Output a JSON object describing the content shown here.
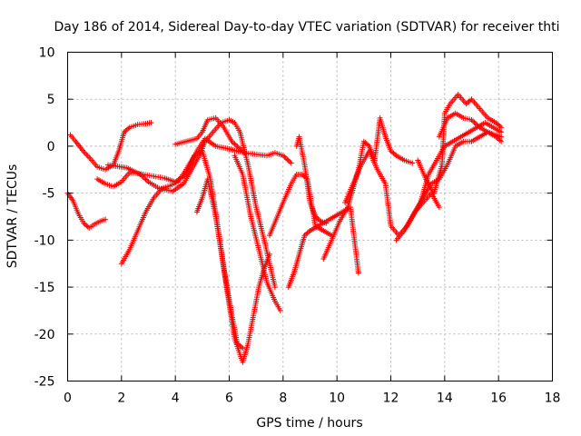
{
  "chart_data": {
    "type": "scatter",
    "title": "Day 186 of 2014, Sidereal Day-to-day VTEC variation (SDTVAR) for receiver thti",
    "xlabel": "GPS time / hours",
    "ylabel": "SDTVAR / TECUs",
    "xlim": [
      0,
      18
    ],
    "ylim": [
      -25,
      10
    ],
    "xticks": [
      "0",
      "2",
      "4",
      "6",
      "8",
      "10",
      "12",
      "14",
      "16",
      "18"
    ],
    "yticks": [
      "10",
      "5",
      "0",
      "-5",
      "-10",
      "-15",
      "-20",
      "-25"
    ],
    "grid": true,
    "marker": "plus",
    "color": "#ff0000",
    "series": [
      {
        "x": [
          0.0,
          0.2,
          0.4,
          0.6,
          0.8,
          1.0,
          1.2,
          1.4
        ],
        "y": [
          -5,
          -5.8,
          -7.2,
          -8.2,
          -8.7,
          -8.3,
          -8.0,
          -7.8
        ]
      },
      {
        "x": [
          0.1,
          0.3,
          0.6,
          0.9,
          1.1,
          1.4,
          1.7,
          1.9,
          2.1,
          2.3,
          2.6,
          2.9,
          3.1
        ],
        "y": [
          1.2,
          0.5,
          -0.6,
          -1.5,
          -2.2,
          -2.5,
          -2.0,
          -0.5,
          1.5,
          2.0,
          2.3,
          2.4,
          2.5
        ]
      },
      {
        "x": [
          1.1,
          1.4,
          1.7,
          2.0,
          2.3,
          2.8,
          3.2,
          3.6,
          4.0,
          4.4,
          4.8,
          5.1,
          5.5,
          6.0,
          6.4,
          6.8,
          7.1,
          7.4,
          7.7,
          8.0,
          8.3
        ],
        "y": [
          -3.5,
          -4.0,
          -4.3,
          -3.8,
          -2.8,
          -3.0,
          -3.2,
          -3.4,
          -3.8,
          -3.0,
          -0.5,
          0.8,
          0.0,
          -0.3,
          -0.6,
          -0.8,
          -0.9,
          -1.0,
          -0.7,
          -1.0,
          -1.8
        ]
      },
      {
        "x": [
          1.5,
          2.2,
          2.7,
          3.0,
          3.4,
          3.9,
          4.3,
          4.6,
          4.9,
          5.1,
          5.4,
          5.7,
          6.0,
          6.2,
          6.4,
          6.7,
          7.0,
          7.3,
          7.7
        ],
        "y": [
          -2.0,
          -2.3,
          -3.0,
          -3.8,
          -4.5,
          -4.8,
          -4.0,
          -2.5,
          -1.0,
          0.5,
          1.5,
          2.5,
          2.8,
          2.5,
          1.5,
          -2.0,
          -6.5,
          -10.0,
          -15.0
        ]
      },
      {
        "x": [
          2.0,
          2.3,
          2.6,
          2.9,
          3.2,
          3.5,
          3.8,
          4.1,
          4.4,
          4.7,
          5.0,
          5.3,
          5.6,
          5.9,
          6.2,
          6.5,
          6.7,
          6.9,
          7.1,
          7.3,
          7.5
        ],
        "y": [
          -12.5,
          -11.0,
          -9.0,
          -7.0,
          -5.5,
          -4.5,
          -4.2,
          -3.8,
          -2.5,
          -1.0,
          -0.5,
          -3.5,
          -9.0,
          -15.0,
          -20.5,
          -23.0,
          -21.0,
          -18.0,
          -15.0,
          -13.0,
          -11.5
        ]
      },
      {
        "x": [
          4.0,
          4.4,
          4.8,
          5.0,
          5.2,
          5.5,
          5.8,
          6.1,
          6.4,
          6.6
        ],
        "y": [
          0.2,
          0.5,
          0.8,
          1.5,
          2.8,
          3.0,
          2.0,
          0.5,
          -0.3,
          -0.8
        ]
      },
      {
        "x": [
          4.8,
          5.0,
          5.2,
          5.5,
          5.8,
          6.1,
          6.3,
          6.5
        ],
        "y": [
          -7.0,
          -5.5,
          -3.5,
          -7.5,
          -13.0,
          -18.0,
          -21.0,
          -21.5
        ]
      },
      {
        "x": [
          6.2,
          6.5,
          6.8,
          7.1,
          7.4,
          7.7,
          7.9
        ],
        "y": [
          -1.0,
          -3.0,
          -7.5,
          -11.0,
          -14.5,
          -16.5,
          -17.5
        ]
      },
      {
        "x": [
          8.2,
          8.4,
          8.6,
          8.8,
          9.0,
          9.3,
          9.6,
          9.9,
          10.2,
          10.5,
          10.8
        ],
        "y": [
          -15.0,
          -13.5,
          -11.5,
          -9.5,
          -9.0,
          -8.5,
          -8.0,
          -7.5,
          -7.0,
          -6.5,
          -13.5
        ]
      },
      {
        "x": [
          7.5,
          8.0,
          8.3,
          8.5,
          8.7,
          8.9,
          9.2,
          9.5,
          9.8
        ],
        "y": [
          -9.5,
          -6.0,
          -4.0,
          -3.0,
          -3.0,
          -3.5,
          -8.5,
          -9.0,
          -9.5
        ]
      },
      {
        "x": [
          8.5,
          8.6,
          8.8,
          9.0,
          9.2,
          9.4,
          9.6
        ],
        "y": [
          0.0,
          1.0,
          -2.0,
          -6.0,
          -7.5,
          -8.0,
          -8.2
        ]
      },
      {
        "x": [
          9.5,
          9.8,
          10.1,
          10.4,
          10.6,
          10.8,
          11.0,
          11.2,
          11.4,
          11.6,
          11.8,
          12.0,
          12.2,
          12.5,
          12.8
        ],
        "y": [
          -12.0,
          -10.0,
          -8.0,
          -6.5,
          -4.5,
          -2.5,
          0.5,
          0.0,
          -1.5,
          3.0,
          1.0,
          -0.5,
          -1.0,
          -1.5,
          -1.8
        ]
      },
      {
        "x": [
          10.3,
          10.6,
          10.9,
          11.2,
          11.5,
          11.8,
          12.0,
          12.3,
          12.6,
          12.9,
          13.2,
          13.5,
          13.8
        ],
        "y": [
          -6.0,
          -4.0,
          -2.0,
          -0.5,
          -2.5,
          -4.0,
          -8.5,
          -9.5,
          -8.5,
          -7.0,
          -6.0,
          -5.0,
          -6.5
        ]
      },
      {
        "x": [
          12.2,
          12.5,
          12.8,
          13.1,
          13.4,
          13.7,
          14.0,
          14.3,
          14.6,
          14.9,
          15.2,
          15.5,
          15.8,
          16.1
        ],
        "y": [
          -10.0,
          -9.0,
          -7.5,
          -6.0,
          -3.0,
          -1.5,
          0.0,
          0.5,
          1.0,
          1.5,
          2.0,
          2.5,
          2.0,
          1.5
        ]
      },
      {
        "x": [
          13.0,
          13.3,
          13.6,
          13.9,
          14.0,
          14.2,
          14.5,
          14.8,
          15.0,
          15.3,
          15.6,
          15.9,
          16.1
        ],
        "y": [
          -1.5,
          -3.5,
          -5.0,
          -2.0,
          3.5,
          4.5,
          5.5,
          4.5,
          5.0,
          4.0,
          3.0,
          2.5,
          2.0
        ]
      },
      {
        "x": [
          13.8,
          14.1,
          14.4,
          14.7,
          15.0,
          15.3,
          15.6,
          15.9,
          16.1
        ],
        "y": [
          1.0,
          3.0,
          3.5,
          3.0,
          2.8,
          2.0,
          1.5,
          1.2,
          1.0
        ]
      },
      {
        "x": [
          12.6,
          12.9,
          13.2,
          13.5,
          13.8,
          14.1,
          14.4,
          14.7,
          15.0,
          15.3,
          15.6,
          15.9,
          16.1
        ],
        "y": [
          -8.5,
          -7.0,
          -5.5,
          -4.0,
          -3.5,
          -2.0,
          0.0,
          0.5,
          0.5,
          1.0,
          1.5,
          1.0,
          0.5
        ]
      }
    ]
  }
}
